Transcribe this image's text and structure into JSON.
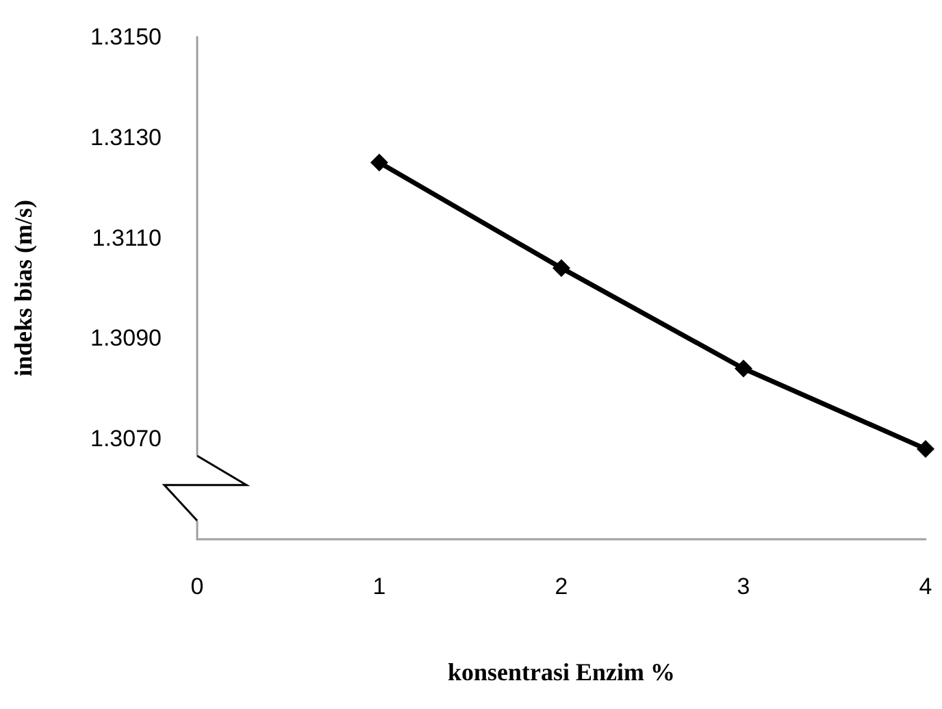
{
  "chart_data": {
    "type": "line",
    "xlabel": "konsentrasi Enzim %",
    "ylabel": "indeks bias (m/s)",
    "x": [
      1,
      2,
      3,
      4
    ],
    "series": [
      {
        "color": "#000000",
        "values": [
          1.3125,
          1.3104,
          1.3084,
          1.3068
        ]
      }
    ],
    "xlim": [
      0,
      4
    ],
    "xticks": [
      0,
      1,
      2,
      3,
      4
    ],
    "ylim": [
      1.305,
      1.315
    ],
    "yticks": [
      {
        "value": 1.307,
        "label": "1.3070"
      },
      {
        "value": 1.309,
        "label": "1.3090"
      },
      {
        "value": 1.311,
        "label": "1.3110"
      },
      {
        "value": 1.313,
        "label": "1.3130"
      },
      {
        "value": 1.315,
        "label": "1.3150"
      }
    ],
    "grid": false,
    "marker": "diamond",
    "line_style": "solid"
  }
}
